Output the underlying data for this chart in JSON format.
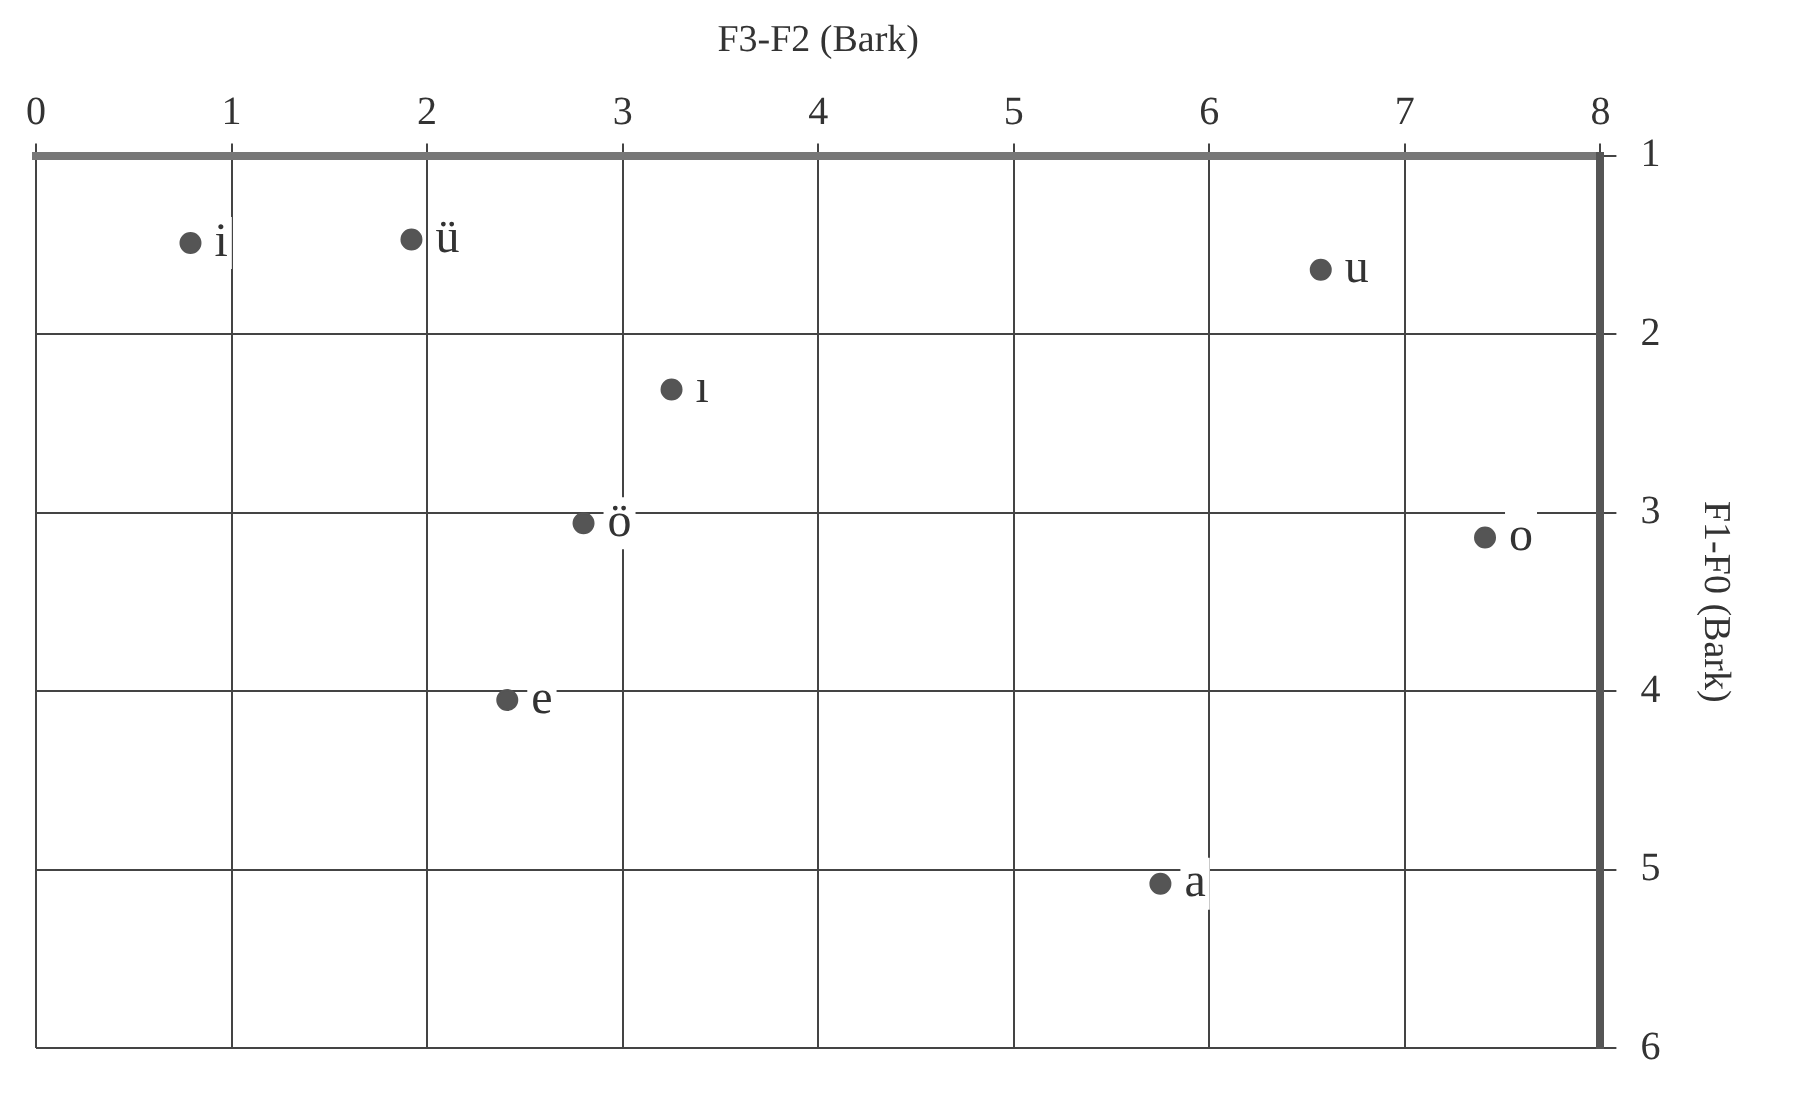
{
  "chart_data": {
    "type": "scatter",
    "xlabel": "F3-F2 (Bark)",
    "ylabel": "F1-F0 (Bark)",
    "xlim": [
      0,
      8
    ],
    "xticks": [
      0,
      1,
      2,
      3,
      4,
      5,
      6,
      7,
      8
    ],
    "ylim": [
      6,
      1
    ],
    "yticks": [
      1,
      2,
      3,
      4,
      5,
      6
    ],
    "grid": true,
    "marker": "circle",
    "x": [
      0.79,
      1.92,
      6.57,
      3.25,
      2.8,
      7.41,
      2.41,
      5.75
    ],
    "series": [
      {
        "color": "#555555",
        "values": [
          1.49,
          1.47,
          1.64,
          2.31,
          3.06,
          3.14,
          4.05,
          5.08
        ]
      }
    ],
    "annotations": [
      {
        "text": "i",
        "x": 0.79,
        "y": 1.49
      },
      {
        "text": "ü",
        "x": 1.92,
        "y": 1.47
      },
      {
        "text": "u",
        "x": 6.57,
        "y": 1.64
      },
      {
        "text": "ı",
        "x": 3.25,
        "y": 2.31
      },
      {
        "text": "ö",
        "x": 2.8,
        "y": 3.06
      },
      {
        "text": "o",
        "x": 7.41,
        "y": 3.14
      },
      {
        "text": "e",
        "x": 2.41,
        "y": 4.05
      },
      {
        "text": "a",
        "x": 5.75,
        "y": 5.08
      }
    ]
  }
}
